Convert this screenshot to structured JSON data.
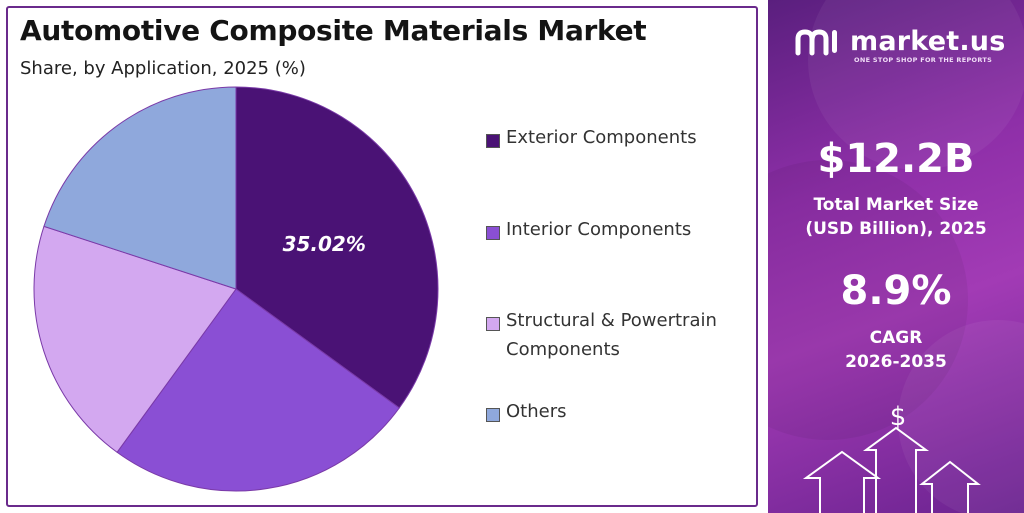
{
  "header": {
    "title": "Automotive Composite Materials Market",
    "subtitle": "Share, by Application, 2025 (%)"
  },
  "chart_data": {
    "type": "pie",
    "categories": [
      "Exterior Components",
      "Interior Components",
      "Structural & Powertrain Components",
      "Others"
    ],
    "values": [
      35.02,
      25.0,
      20.0,
      19.98
    ],
    "colors": [
      "#4a1275",
      "#8a4fd4",
      "#d3a8f0",
      "#8fa8dc"
    ],
    "data_labels": [
      "35.02%",
      "",
      "",
      ""
    ],
    "start_angle_deg": 0,
    "direction": "clockwise",
    "legend_position": "right"
  },
  "legend": {
    "items": [
      {
        "line1": "Exterior Components",
        "line2": ""
      },
      {
        "line1": "Interior Components",
        "line2": ""
      },
      {
        "line1": "Structural & Powertrain",
        "line2": "Components"
      },
      {
        "line1": "Others",
        "line2": ""
      }
    ]
  },
  "sidebar": {
    "brand": "market.us",
    "tagline": "ONE STOP SHOP FOR THE REPORTS",
    "market_size_value": "$12.2B",
    "market_size_label_1": "Total Market Size",
    "market_size_label_2": "(USD Billion), 2025",
    "cagr_value": "8.9%",
    "cagr_label_1": "CAGR",
    "cagr_label_2": "2026-2035",
    "dollar_symbol": "$"
  }
}
